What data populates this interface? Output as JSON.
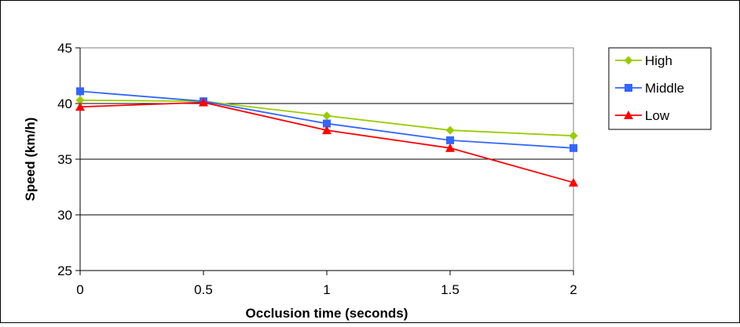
{
  "chart_data": {
    "type": "line",
    "xlabel": "Occlusion time (seconds)",
    "ylabel": "Speed (km/h)",
    "x": [
      0,
      0.5,
      1,
      1.5,
      2
    ],
    "x_tick_labels": [
      "0",
      "0.5",
      "1",
      "1.5",
      "2"
    ],
    "ylim": [
      25,
      45
    ],
    "y_ticks": [
      25,
      30,
      35,
      40,
      45
    ],
    "y_tick_labels": [
      "25",
      "30",
      "35",
      "40",
      "45"
    ],
    "grid": "horizontal",
    "legend_position": "right",
    "series": [
      {
        "name": "High",
        "values": [
          40.3,
          40.2,
          38.9,
          37.6,
          37.1
        ],
        "color": "#99cc00",
        "marker": "diamond"
      },
      {
        "name": "Middle",
        "values": [
          41.1,
          40.2,
          38.2,
          36.7,
          36.0
        ],
        "color": "#3366ff",
        "marker": "square"
      },
      {
        "name": "Low",
        "values": [
          39.7,
          40.1,
          37.6,
          36.0,
          32.9
        ],
        "color": "#ff0000",
        "marker": "triangle"
      }
    ]
  }
}
